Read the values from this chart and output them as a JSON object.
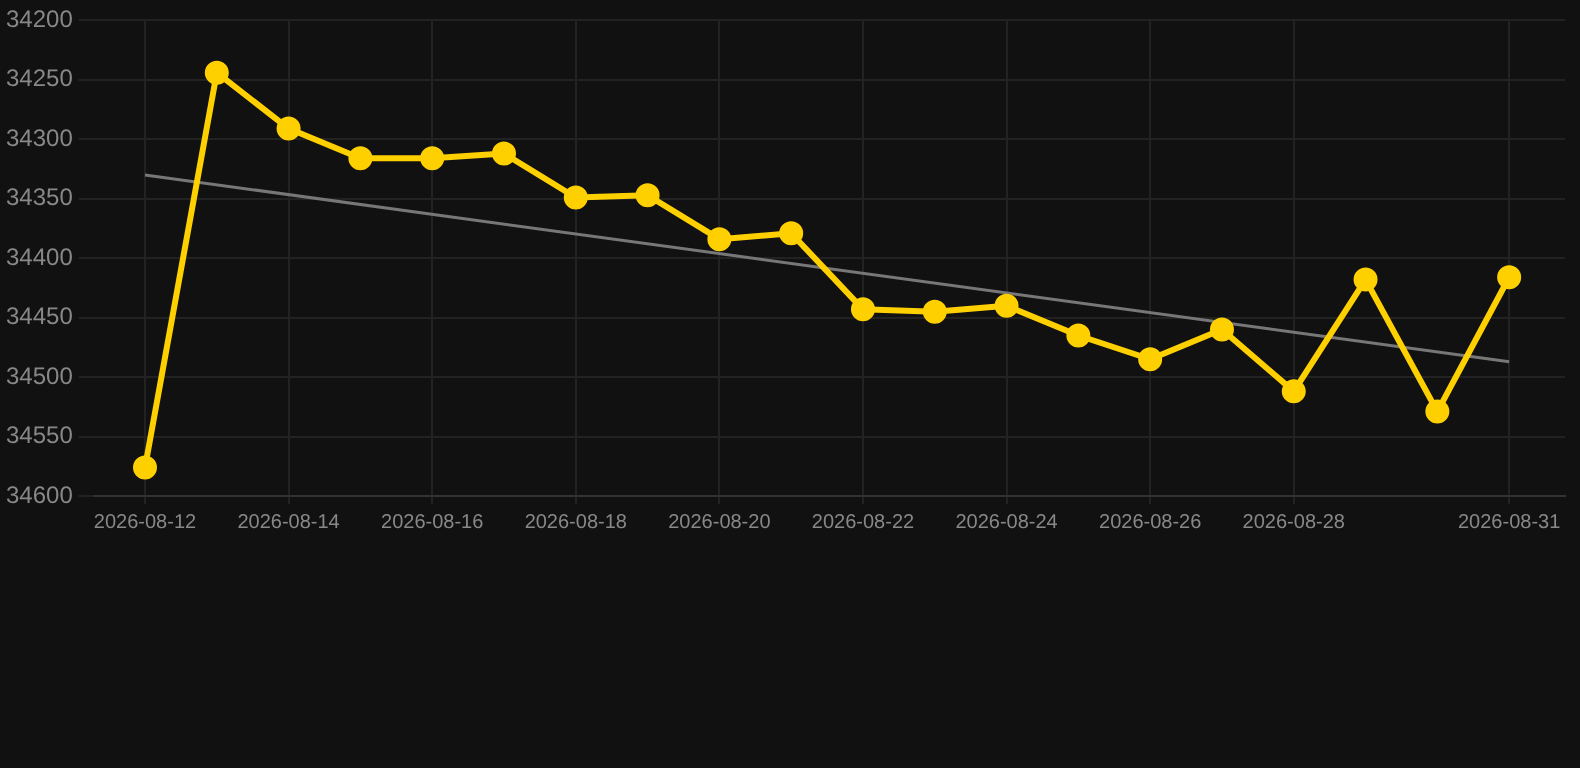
{
  "chart_data": {
    "type": "line",
    "x": [
      "2026-08-12",
      "2026-08-13",
      "2026-08-14",
      "2026-08-15",
      "2026-08-16",
      "2026-08-17",
      "2026-08-18",
      "2026-08-19",
      "2026-08-20",
      "2026-08-21",
      "2026-08-22",
      "2026-08-23",
      "2026-08-24",
      "2026-08-25",
      "2026-08-26",
      "2026-08-27",
      "2026-08-28",
      "2026-08-29",
      "2026-08-30",
      "2026-08-31"
    ],
    "series": [
      {
        "color": "#ffd000",
        "marker": "circle",
        "values": [
          34576,
          34244,
          34291,
          34316,
          34316,
          34312,
          34349,
          34347,
          34384,
          34379,
          34443,
          34445,
          34440,
          34465,
          34485,
          34460,
          34512,
          34418,
          34529,
          34416
        ]
      },
      {
        "type": "line",
        "color": "#777777",
        "marker": "none",
        "x": [
          "2026-08-12",
          "2026-08-31"
        ],
        "values": [
          34330,
          34487
        ]
      }
    ],
    "ylim": [
      34600,
      34200
    ],
    "yticks": [
      34200,
      34250,
      34300,
      34350,
      34400,
      34450,
      34500,
      34550,
      34600
    ],
    "xlim": [
      "2026-08-11T07:12",
      "2026-08-31T18:40"
    ],
    "xticks": [
      "2026-08-12",
      "2026-08-14",
      "2026-08-16",
      "2026-08-18",
      "2026-08-20",
      "2026-08-22",
      "2026-08-24",
      "2026-08-26",
      "2026-08-28",
      "2026-08-31"
    ],
    "grid": true,
    "legend": false
  }
}
